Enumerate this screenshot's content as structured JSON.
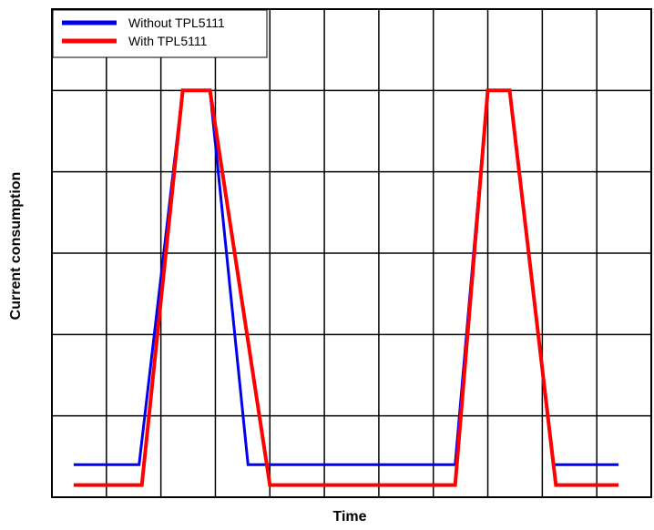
{
  "chart_data": {
    "type": "line",
    "title": "",
    "xlabel": "Time",
    "ylabel": "Current consumption",
    "xlim": [
      0,
      11
    ],
    "ylim": [
      0,
      6
    ],
    "x_ticks_count": 11,
    "y_ticks_count": 6,
    "grid": true,
    "tick_labels_shown": false,
    "legend": {
      "position": "top-left"
    },
    "series": [
      {
        "name": "Without TPL5111",
        "color": "#0000ee",
        "x": [
          0.4,
          1.6,
          2.4,
          2.9,
          3.6,
          7.4,
          8.0,
          8.4,
          9.2,
          10.4
        ],
        "y": [
          0.4,
          0.4,
          5.0,
          5.0,
          0.4,
          0.4,
          5.0,
          5.0,
          0.4,
          0.4
        ]
      },
      {
        "name": "With TPL5111",
        "color": "#ff0000",
        "x": [
          0.4,
          1.65,
          2.4,
          2.9,
          4.0,
          7.4,
          8.0,
          8.4,
          9.25,
          10.4
        ],
        "y": [
          0.15,
          0.15,
          5.0,
          5.0,
          0.15,
          0.15,
          5.0,
          5.0,
          0.15,
          0.15
        ]
      }
    ]
  }
}
